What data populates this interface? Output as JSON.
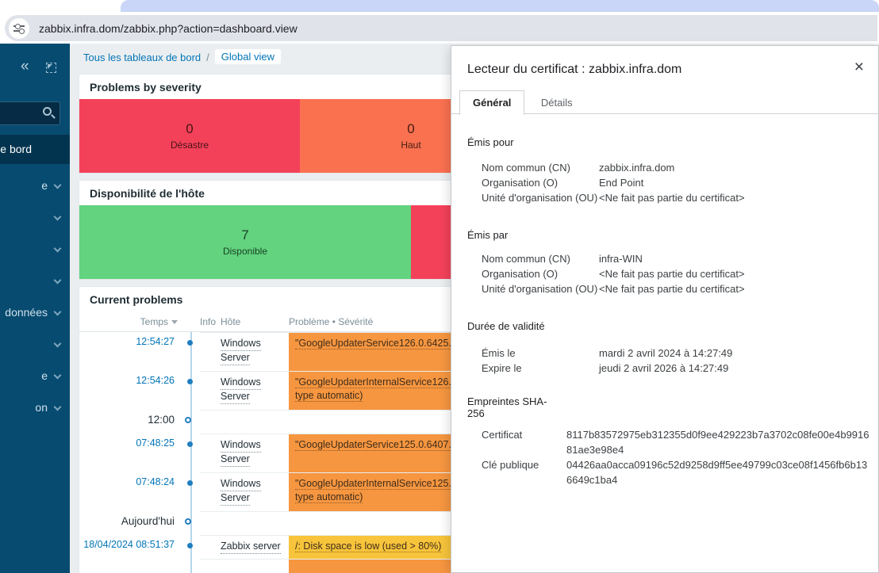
{
  "browser": {
    "url": "zabbix.infra.dom/zabbix.php?action=dashboard.view"
  },
  "colors": {
    "severity_disaster_red": "#f4415a",
    "severity_high_orange": "#fa7150",
    "severity_average_orange": "#f69640",
    "severity_warning_yellow": "#f7c43b",
    "availability_green": "#63d37f",
    "sidebar_blue": "#074b70",
    "link_blue": "#0275b8",
    "chrome_tab_blue": "#c9d6f8"
  },
  "sidebar": {
    "active_item": "e bord",
    "items": [
      {
        "label": "e"
      },
      {
        "label": ""
      },
      {
        "label": ""
      },
      {
        "label": ""
      },
      {
        "label": "données"
      },
      {
        "label": ""
      },
      {
        "label": "e"
      },
      {
        "label": "on"
      }
    ]
  },
  "breadcrumb": {
    "root": "Tous les tableaux de bord",
    "separator": "/",
    "current": "Global view"
  },
  "widgets": {
    "severity": {
      "title": "Problems by severity",
      "blocks": [
        {
          "count": "0",
          "label": "Désastre"
        },
        {
          "count": "0",
          "label": "Haut"
        }
      ]
    },
    "availability": {
      "title": "Disponibilité de l'hôte",
      "blocks": [
        {
          "count": "7",
          "label": "Disponible"
        },
        {
          "count": "",
          "label": ""
        }
      ]
    },
    "problems": {
      "title": "Current problems",
      "columns": {
        "time": "Temps",
        "info": "Info",
        "host": "Hôte",
        "problem": "Problème • Sévérité"
      },
      "rows": [
        {
          "time": "12:54:27",
          "host_line1": "Windows",
          "host_line2": "Server",
          "problem_line1": "\"GoogleUpdaterService126.0.6425.0",
          "problem_line2": "",
          "severity": "average"
        },
        {
          "time": "12:54:26",
          "host_line1": "Windows",
          "host_line2": "Server",
          "problem_line1": "\"GoogleUpdaterInternalService126.0",
          "problem_line2": "type automatic)",
          "severity": "average"
        },
        {
          "marker": "12:00"
        },
        {
          "time": "07:48:25",
          "host_line1": "Windows",
          "host_line2": "Server",
          "problem_line1": "\"GoogleUpdaterService125.0.6407.0",
          "problem_line2": "",
          "severity": "average"
        },
        {
          "time": "07:48:24",
          "host_line1": "Windows",
          "host_line2": "Server",
          "problem_line1": "\"GoogleUpdaterInternalService125.0",
          "problem_line2": "type automatic)",
          "severity": "average"
        },
        {
          "marker": "Aujourd'hui"
        },
        {
          "time": "18/04/2024 08:51:37",
          "host_line1": "Zabbix server",
          "host_line2": "",
          "problem_line1": "/: Disk space is low (used > 80%)",
          "problem_line2": "",
          "severity": "warning"
        }
      ]
    }
  },
  "dialog": {
    "title": "Lecteur du certificat : zabbix.infra.dom",
    "close": "×",
    "tabs": [
      {
        "label": "Général"
      },
      {
        "label": "Détails"
      }
    ],
    "sections": [
      {
        "header": "Émis pour",
        "rows": [
          [
            "Nom commun (CN)",
            "zabbix.infra.dom"
          ],
          [
            "Organisation (O)",
            "End Point"
          ],
          [
            "Unité d'organisation (OU)",
            "<Ne fait pas partie du certificat>"
          ]
        ]
      },
      {
        "header": "Émis par",
        "rows": [
          [
            "Nom commun (CN)",
            "infra-WIN"
          ],
          [
            "Organisation (O)",
            "<Ne fait pas partie du certificat>"
          ],
          [
            "Unité d'organisation (OU)",
            "<Ne fait pas partie du certificat>"
          ]
        ]
      },
      {
        "header": "Durée de validité",
        "rows": [
          [
            "Émis le",
            "mardi 2 avril 2024 à 14:27:49"
          ],
          [
            "Expire le",
            "jeudi 2 avril 2026 à 14:27:49"
          ]
        ]
      },
      {
        "header": "Empreintes SHA-256",
        "rows": [
          [
            "Certificat",
            "8117b83572975eb312355d0f9ee429223b7a3702c08fe00e4b991681ae3e98e4"
          ],
          [
            "Clé publique",
            "04426aa0acca09196c52d9258d9ff5ee49799c03ce08f1456fb6b136649c1ba4"
          ]
        ]
      }
    ]
  }
}
